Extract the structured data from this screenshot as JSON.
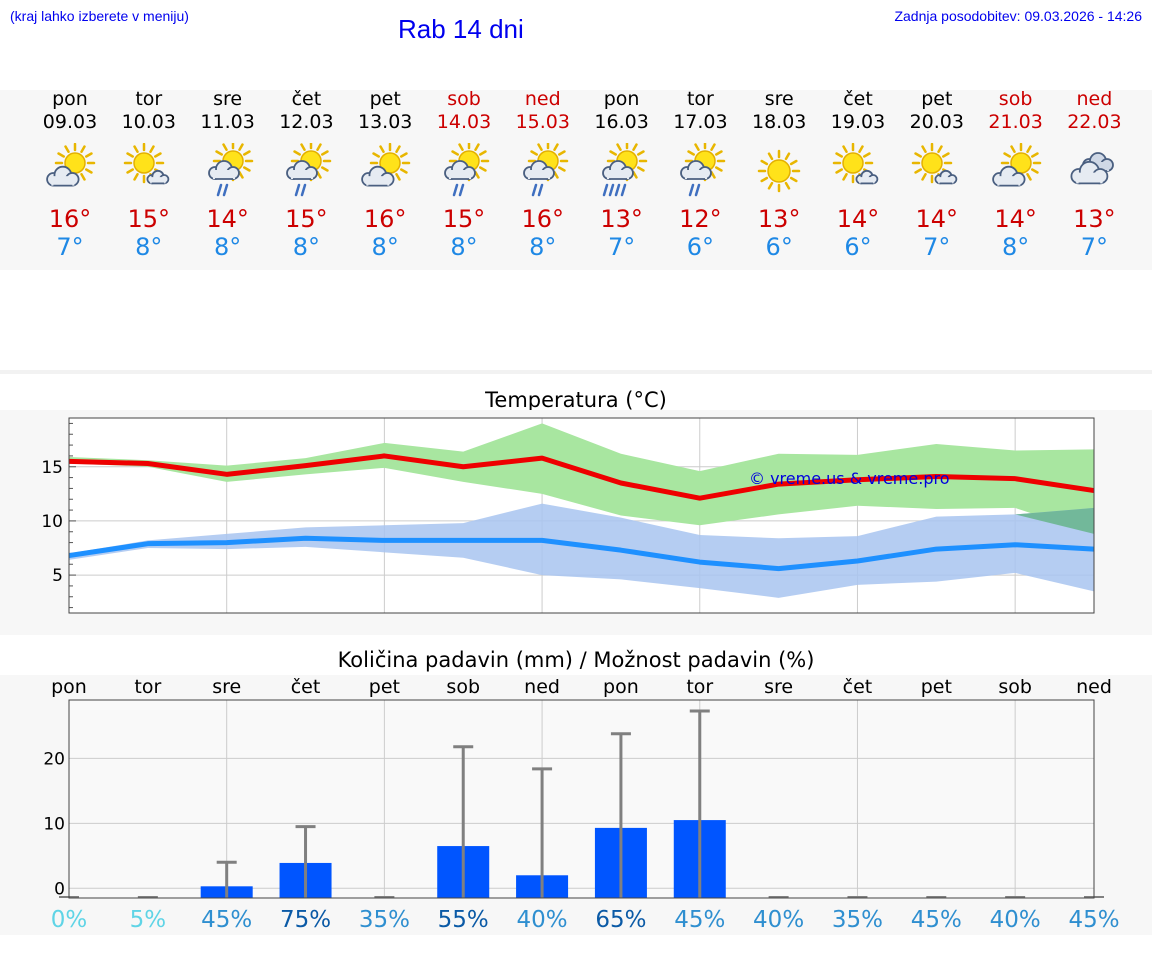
{
  "header": {
    "menu_hint": "(kraj lahko izberete v meniju)",
    "title": "Rab 14 dni",
    "last_update": "Zadnja posodobitev: 09.03.2026 - 14:26"
  },
  "days": [
    {
      "name": "pon",
      "date": "09.03",
      "weekend": false,
      "icon": "partly-cloudy-icon",
      "max": "16°",
      "min": "7°"
    },
    {
      "name": "tor",
      "date": "10.03",
      "weekend": false,
      "icon": "sun-small-cloud-icon",
      "max": "15°",
      "min": "8°"
    },
    {
      "name": "sre",
      "date": "11.03",
      "weekend": false,
      "icon": "sun-cloud-rain-icon",
      "max": "14°",
      "min": "8°"
    },
    {
      "name": "čet",
      "date": "12.03",
      "weekend": false,
      "icon": "sun-cloud-rain-icon",
      "max": "15°",
      "min": "8°"
    },
    {
      "name": "pet",
      "date": "13.03",
      "weekend": false,
      "icon": "partly-cloudy-icon",
      "max": "16°",
      "min": "8°"
    },
    {
      "name": "sob",
      "date": "14.03",
      "weekend": true,
      "icon": "sun-cloud-rain-icon",
      "max": "15°",
      "min": "8°"
    },
    {
      "name": "ned",
      "date": "15.03",
      "weekend": true,
      "icon": "sun-cloud-rain-icon",
      "max": "16°",
      "min": "8°"
    },
    {
      "name": "pon",
      "date": "16.03",
      "weekend": false,
      "icon": "sun-cloud-heavy-rain-icon",
      "max": "13°",
      "min": "7°"
    },
    {
      "name": "tor",
      "date": "17.03",
      "weekend": false,
      "icon": "sun-cloud-rain-icon",
      "max": "12°",
      "min": "6°"
    },
    {
      "name": "sre",
      "date": "18.03",
      "weekend": false,
      "icon": "sun-icon",
      "max": "13°",
      "min": "6°"
    },
    {
      "name": "čet",
      "date": "19.03",
      "weekend": false,
      "icon": "sun-small-cloud-icon",
      "max": "14°",
      "min": "6°"
    },
    {
      "name": "pet",
      "date": "20.03",
      "weekend": false,
      "icon": "sun-small-cloud-icon",
      "max": "14°",
      "min": "7°"
    },
    {
      "name": "sob",
      "date": "21.03",
      "weekend": true,
      "icon": "partly-cloudy-icon",
      "max": "14°",
      "min": "8°"
    },
    {
      "name": "ned",
      "date": "22.03",
      "weekend": true,
      "icon": "cloudy-icon",
      "max": "13°",
      "min": "7°"
    }
  ],
  "colors": {
    "max_line": "#ee0000",
    "max_band": "#a8e6a0",
    "min_line": "#1e90ff",
    "min_band": "#a8c4f0",
    "overlap_band": "#72b89a",
    "bar": "#0055ff",
    "error_bar": "#808080",
    "grid": "#cccccc"
  },
  "chart_data": [
    {
      "type": "line",
      "title": "Temperatura (°C)",
      "watermark": "© vreme.us & vreme.pro",
      "ylim": [
        1.5,
        19.5
      ],
      "yticks": [
        5,
        10,
        15
      ],
      "series": [
        {
          "name": "max",
          "values": [
            15.5,
            15.3,
            14.3,
            15.1,
            16.0,
            15.0,
            15.8,
            13.5,
            12.1,
            13.4,
            13.8,
            14.1,
            13.9,
            12.8
          ],
          "band_low": [
            15.3,
            15.0,
            13.6,
            14.3,
            14.9,
            13.6,
            12.5,
            10.5,
            9.6,
            10.6,
            11.4,
            11.1,
            11.2,
            8.8
          ],
          "band_high": [
            15.9,
            15.6,
            15.1,
            15.8,
            17.2,
            16.4,
            19.0,
            16.2,
            14.6,
            16.2,
            16.1,
            17.1,
            16.5,
            16.6
          ]
        },
        {
          "name": "min",
          "values": [
            6.8,
            7.9,
            8.0,
            8.4,
            8.2,
            8.2,
            8.2,
            7.3,
            6.2,
            5.6,
            6.3,
            7.4,
            7.8,
            7.4
          ],
          "band_low": [
            6.4,
            7.5,
            7.4,
            7.6,
            7.1,
            6.6,
            5.0,
            4.6,
            3.8,
            2.9,
            4.1,
            4.4,
            5.2,
            3.5
          ],
          "band_high": [
            7.0,
            8.2,
            8.8,
            9.4,
            9.6,
            9.8,
            11.6,
            10.3,
            8.7,
            8.4,
            8.6,
            10.4,
            10.6,
            11.2
          ]
        }
      ]
    },
    {
      "type": "bar",
      "title": "Količina padavin (mm) / Možnost padavin (%)",
      "categories": [
        "pon",
        "tor",
        "sre",
        "čet",
        "pet",
        "sob",
        "ned",
        "pon",
        "tor",
        "sre",
        "čet",
        "pet",
        "sob",
        "ned"
      ],
      "values": [
        0,
        0,
        0.3,
        3.9,
        0,
        6.5,
        2.0,
        9.3,
        10.5,
        0,
        0,
        0,
        0,
        0
      ],
      "error_max": [
        0,
        0,
        4.0,
        9.5,
        0,
        21.8,
        18.4,
        23.8,
        27.3,
        0,
        0,
        0,
        0,
        0
      ],
      "probability": [
        "0%",
        "5%",
        "45%",
        "75%",
        "35%",
        "55%",
        "40%",
        "65%",
        "45%",
        "40%",
        "35%",
        "45%",
        "40%",
        "45%"
      ],
      "probability_colors": [
        "#5fd4e6",
        "#5fd4e6",
        "#2f8fd0",
        "#0b5aa6",
        "#2f8fd0",
        "#0b5aa6",
        "#2f8fd0",
        "#0b5aa6",
        "#2f8fd0",
        "#2f8fd0",
        "#2f8fd0",
        "#2f8fd0",
        "#2f8fd0",
        "#2f8fd0"
      ],
      "ylim": [
        -1.5,
        29
      ],
      "yticks": [
        0,
        10,
        20
      ]
    }
  ]
}
